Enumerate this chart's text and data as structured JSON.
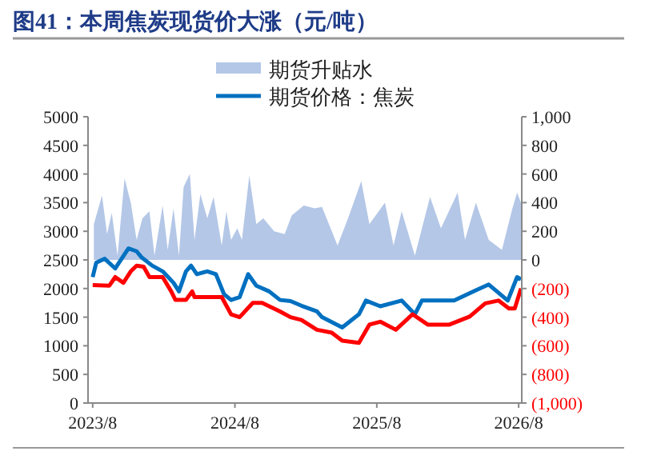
{
  "chart_data": {
    "type": "line",
    "title": "图41：本周焦炭现货价大涨（元/吨）",
    "xlim": [
      "2023-07-20",
      "2026-08-09"
    ],
    "xticks": [
      {
        "value": "2023-08-01",
        "label": "2023/8"
      },
      {
        "value": "2024-08-01",
        "label": "2024/8"
      },
      {
        "value": "2025-08-01",
        "label": "2025/8"
      },
      {
        "value": "2026-08-01",
        "label": "2026/8"
      }
    ],
    "ylim": [
      0,
      5000
    ],
    "yticks": [
      0,
      500,
      1000,
      1500,
      2000,
      2500,
      3000,
      3500,
      4000,
      4500,
      5000
    ],
    "y2lim": [
      -1000,
      1000
    ],
    "y2ticks": [
      {
        "value": -1000,
        "label": "(1,000)"
      },
      {
        "value": -800,
        "label": "(800)"
      },
      {
        "value": -600,
        "label": "(600)"
      },
      {
        "value": -400,
        "label": "(400)"
      },
      {
        "value": -200,
        "label": "(200)"
      },
      0,
      200,
      400,
      600,
      800,
      {
        "value": 1000,
        "label": "1,000"
      }
    ],
    "grid": false,
    "legend": "top",
    "series": [
      {
        "name": "期货升贴水",
        "type": "area",
        "axis": "y2",
        "color": "#b4c7e7",
        "x": [
          "2023-08-04",
          "2023-08-25",
          "2023-09-07",
          "2023-09-19",
          "2023-10-04",
          "2023-10-22",
          "2023-11-07",
          "2023-11-22",
          "2023-12-07",
          "2023-12-25",
          "2024-01-07",
          "2024-01-28",
          "2024-02-10",
          "2024-02-25",
          "2024-03-10",
          "2024-03-22",
          "2024-04-07",
          "2024-04-19",
          "2024-05-04",
          "2024-05-22",
          "2024-06-07",
          "2024-06-28",
          "2024-07-10",
          "2024-07-22",
          "2024-08-07",
          "2024-08-19",
          "2024-09-07",
          "2024-09-25",
          "2024-10-13",
          "2024-11-10",
          "2024-12-07",
          "2024-12-25",
          "2025-01-25",
          "2025-02-22",
          "2025-03-13",
          "2025-04-22",
          "2025-05-19",
          "2025-06-22",
          "2025-07-13",
          "2025-08-22",
          "2025-09-13",
          "2025-10-04",
          "2025-11-07",
          "2025-12-16",
          "2026-01-13",
          "2026-02-25",
          "2026-03-16",
          "2026-04-13",
          "2026-05-16",
          "2026-06-19",
          "2026-07-16",
          "2026-07-28",
          "2026-08-07"
        ],
        "values": [
          250,
          450,
          180,
          330,
          30,
          570,
          400,
          140,
          290,
          340,
          30,
          380,
          70,
          360,
          30,
          510,
          600,
          140,
          460,
          290,
          440,
          100,
          340,
          140,
          220,
          140,
          590,
          250,
          290,
          200,
          180,
          310,
          380,
          360,
          370,
          100,
          290,
          550,
          250,
          400,
          100,
          340,
          30,
          440,
          220,
          470,
          140,
          400,
          140,
          70,
          360,
          470,
          400
        ]
      },
      {
        "name": "期货价格：焦炭",
        "color": "#0070c0",
        "x": [
          "2023-08-01",
          "2023-08-10",
          "2023-09-01",
          "2023-09-28",
          "2023-11-01",
          "2023-11-22",
          "2023-12-04",
          "2024-01-01",
          "2024-01-28",
          "2024-02-25",
          "2024-03-10",
          "2024-03-28",
          "2024-04-10",
          "2024-04-25",
          "2024-05-22",
          "2024-06-13",
          "2024-07-04",
          "2024-07-22",
          "2024-08-13",
          "2024-09-04",
          "2024-09-25",
          "2024-10-28",
          "2024-11-25",
          "2024-12-22",
          "2025-01-19",
          "2025-02-28",
          "2025-03-13",
          "2025-05-04",
          "2025-06-16",
          "2025-07-04",
          "2025-08-10",
          "2025-10-04",
          "2025-11-07",
          "2025-11-25",
          "2026-02-16",
          "2026-04-13",
          "2026-05-16",
          "2026-07-04",
          "2026-07-28",
          "2026-08-07"
        ],
        "values": [
          2200,
          2450,
          2520,
          2350,
          2700,
          2650,
          2550,
          2400,
          2300,
          2100,
          1950,
          2300,
          2400,
          2250,
          2300,
          2250,
          1900,
          1800,
          1850,
          2250,
          2050,
          1950,
          1800,
          1780,
          1700,
          1600,
          1500,
          1320,
          1550,
          1790,
          1690,
          1790,
          1550,
          1790,
          1790,
          1970,
          2070,
          1790,
          2200,
          2160
        ]
      },
      {
        "color": "#ff0000",
        "x": [
          "2023-08-01",
          "2023-09-13",
          "2023-09-28",
          "2023-10-19",
          "2023-11-07",
          "2023-11-22",
          "2023-12-10",
          "2023-12-25",
          "2024-01-28",
          "2024-02-19",
          "2024-03-01",
          "2024-03-28",
          "2024-04-13",
          "2024-04-19",
          "2024-06-28",
          "2024-07-22",
          "2024-08-13",
          "2024-09-16",
          "2024-10-10",
          "2024-11-25",
          "2024-12-22",
          "2025-01-19",
          "2025-02-28",
          "2025-04-07",
          "2025-05-04",
          "2025-06-16",
          "2025-07-13",
          "2025-08-10",
          "2025-09-19",
          "2025-11-01",
          "2025-12-10",
          "2026-02-04",
          "2026-03-28",
          "2026-05-07",
          "2026-06-10",
          "2026-07-07",
          "2026-07-22",
          "2026-08-07"
        ],
        "values": [
          2060,
          2050,
          2200,
          2100,
          2300,
          2400,
          2380,
          2200,
          2200,
          1950,
          1800,
          1800,
          1950,
          1850,
          1850,
          1550,
          1500,
          1750,
          1750,
          1600,
          1500,
          1450,
          1280,
          1230,
          1090,
          1050,
          1370,
          1420,
          1280,
          1550,
          1370,
          1370,
          1510,
          1740,
          1790,
          1650,
          1650,
          2000
        ]
      }
    ]
  }
}
